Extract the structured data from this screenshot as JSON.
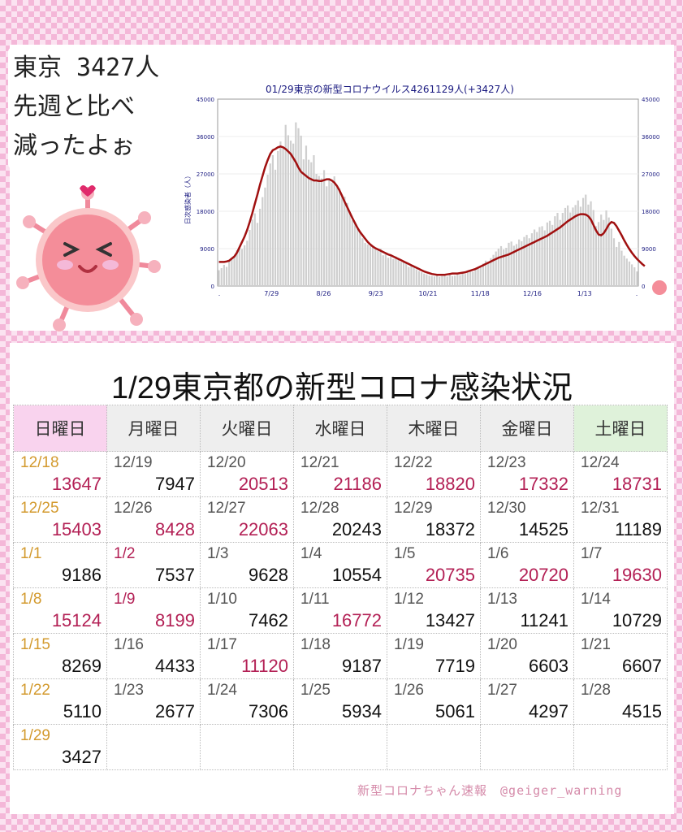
{
  "bubble": {
    "line1": "東京 3427人",
    "line2": "先週と比べ",
    "line3": "減ったよぉ"
  },
  "table": {
    "title": "1/29東京都の新型コロナ感染状況",
    "headers": [
      "日曜日",
      "月曜日",
      "火曜日",
      "水曜日",
      "木曜日",
      "金曜日",
      "土曜日"
    ],
    "rows": [
      [
        {
          "d": "12/18",
          "v": "13647"
        },
        {
          "d": "12/19",
          "v": "7947"
        },
        {
          "d": "12/20",
          "v": "20513"
        },
        {
          "d": "12/21",
          "v": "21186"
        },
        {
          "d": "12/22",
          "v": "18820"
        },
        {
          "d": "12/23",
          "v": "17332"
        },
        {
          "d": "12/24",
          "v": "18731"
        }
      ],
      [
        {
          "d": "12/25",
          "v": "15403"
        },
        {
          "d": "12/26",
          "v": "8428"
        },
        {
          "d": "12/27",
          "v": "22063"
        },
        {
          "d": "12/28",
          "v": "20243"
        },
        {
          "d": "12/29",
          "v": "18372"
        },
        {
          "d": "12/30",
          "v": "14525"
        },
        {
          "d": "12/31",
          "v": "11189"
        }
      ],
      [
        {
          "d": "1/1",
          "v": "9186"
        },
        {
          "d": "1/2",
          "v": "7537"
        },
        {
          "d": "1/3",
          "v": "9628"
        },
        {
          "d": "1/4",
          "v": "10554"
        },
        {
          "d": "1/5",
          "v": "20735"
        },
        {
          "d": "1/6",
          "v": "20720"
        },
        {
          "d": "1/7",
          "v": "19630"
        }
      ],
      [
        {
          "d": "1/8",
          "v": "15124"
        },
        {
          "d": "1/9",
          "v": "8199"
        },
        {
          "d": "1/10",
          "v": "7462"
        },
        {
          "d": "1/11",
          "v": "16772"
        },
        {
          "d": "1/12",
          "v": "13427"
        },
        {
          "d": "1/13",
          "v": "11241"
        },
        {
          "d": "1/14",
          "v": "10729"
        }
      ],
      [
        {
          "d": "1/15",
          "v": "8269"
        },
        {
          "d": "1/16",
          "v": "4433"
        },
        {
          "d": "1/17",
          "v": "11120"
        },
        {
          "d": "1/18",
          "v": "9187"
        },
        {
          "d": "1/19",
          "v": "7719"
        },
        {
          "d": "1/20",
          "v": "6603"
        },
        {
          "d": "1/21",
          "v": "6607"
        }
      ],
      [
        {
          "d": "1/22",
          "v": "5110"
        },
        {
          "d": "1/23",
          "v": "2677"
        },
        {
          "d": "1/24",
          "v": "7306"
        },
        {
          "d": "1/25",
          "v": "5934"
        },
        {
          "d": "1/26",
          "v": "5061"
        },
        {
          "d": "1/27",
          "v": "4297"
        },
        {
          "d": "1/28",
          "v": "4515"
        }
      ],
      [
        {
          "d": "1/29",
          "v": "3427"
        },
        {
          "d": "",
          "v": ""
        },
        {
          "d": "",
          "v": ""
        },
        {
          "d": "",
          "v": ""
        },
        {
          "d": "",
          "v": ""
        },
        {
          "d": "",
          "v": ""
        },
        {
          "d": "",
          "v": ""
        }
      ]
    ],
    "highlight": [
      [
        1,
        0,
        1,
        1,
        1,
        1,
        1
      ],
      [
        1,
        1,
        1,
        0,
        0,
        0,
        0
      ],
      [
        0,
        0,
        0,
        0,
        1,
        1,
        1
      ],
      [
        1,
        1,
        0,
        1,
        0,
        0,
        0
      ],
      [
        0,
        0,
        1,
        0,
        0,
        0,
        0
      ],
      [
        0,
        0,
        0,
        0,
        0,
        0,
        0
      ],
      [
        0,
        0,
        0,
        0,
        0,
        0,
        0
      ]
    ],
    "holiday_dates": [
      "12/18",
      "12/25",
      "1/1",
      "1/8",
      "1/15",
      "1/22",
      "1/29"
    ],
    "holiday_red_dates": [
      "1/2",
      "1/9"
    ]
  },
  "credit": "新型コロナちゃん速報　@geiger_warning",
  "colors": {
    "accent_red": "#b32055",
    "holiday_gold": "#d39a2e",
    "line": "#a01010",
    "bars": "#cfcfcf"
  },
  "chart_data": {
    "type": "bar",
    "title": "01/29東京の新型コロナウイルス4261129人(+3427人)",
    "ylabel": "日次感染者（人）",
    "ylim": [
      0,
      45000
    ],
    "yticks": [
      "0",
      "9000",
      "18000",
      "27000",
      "36000",
      "45000"
    ],
    "xticks": [
      ".",
      "7/29",
      "8/26",
      "9/23",
      "10/21",
      "11/18",
      "12/16",
      "1/13",
      "."
    ],
    "series": [
      {
        "type": "bar",
        "values": [
          3800,
          4300,
          5100,
          4600,
          5900,
          6400,
          7000,
          8600,
          9400,
          8900,
          9800,
          10900,
          13500,
          16000,
          17500,
          15200,
          18600,
          21400,
          23700,
          26800,
          29500,
          31500,
          28000,
          32500,
          34800,
          33100,
          38800,
          36300,
          35000,
          34300,
          39400,
          38000,
          36200,
          30500,
          33800,
          30400,
          29800,
          31500,
          27000,
          26500,
          25900,
          27900,
          24000,
          25800,
          24900,
          26400,
          23800,
          23500,
          22000,
          21500,
          20000,
          17900,
          15800,
          15000,
          13700,
          12800,
          11500,
          10400,
          10000,
          9600,
          9400,
          8800,
          8500,
          9000,
          7400,
          7600,
          6800,
          7200,
          6500,
          7100,
          6500,
          5800,
          6000,
          5600,
          4600,
          5100,
          4400,
          4000,
          3600,
          3300,
          3000,
          2800,
          2500,
          2400,
          2300,
          2500,
          2200,
          2400,
          2600,
          2300,
          2700,
          2400,
          2500,
          2800,
          2600,
          3200,
          2900,
          3400,
          3600,
          3400,
          3900,
          4500,
          4400,
          5400,
          6100,
          5800,
          6700,
          7500,
          8300,
          9000,
          9600,
          8800,
          9200,
          10400,
          10700,
          9700,
          10100,
          11200,
          10800,
          11800,
          12300,
          11500,
          12700,
          13600,
          13000,
          14200,
          14400,
          13400,
          15300,
          15700,
          14700,
          16800,
          17600,
          15900,
          17600,
          18800,
          19400,
          17700,
          18900,
          19500,
          20600,
          19100,
          21200,
          22000,
          19600,
          20400,
          18300,
          14400,
          15400,
          17200,
          15900,
          18200,
          16500,
          13800,
          11500,
          9400,
          10600,
          8500,
          7300,
          6600,
          5900,
          5200,
          4500,
          3500
        ]
      },
      {
        "type": "line",
        "values": [
          5800,
          5800,
          5800,
          5900,
          6100,
          6600,
          7100,
          8000,
          9300,
          10600,
          11900,
          13500,
          15400,
          17500,
          19800,
          22000,
          24400,
          26500,
          28600,
          30300,
          31800,
          32700,
          33000,
          33400,
          33600,
          33400,
          33000,
          32400,
          31800,
          30800,
          29800,
          28500,
          27500,
          27000,
          26500,
          26000,
          25700,
          25400,
          25400,
          25300,
          25300,
          25500,
          25700,
          25700,
          25400,
          24900,
          24100,
          23000,
          21700,
          20300,
          19000,
          17700,
          16400,
          15200,
          14000,
          13000,
          12200,
          11400,
          10600,
          10000,
          9500,
          9100,
          8800,
          8500,
          8200,
          7900,
          7600,
          7400,
          7100,
          6800,
          6500,
          6200,
          5900,
          5600,
          5300,
          5000,
          4700,
          4400,
          4100,
          3800,
          3500,
          3300,
          3100,
          2900,
          2800,
          2700,
          2700,
          2700,
          2700,
          2800,
          2900,
          3000,
          3000,
          3000,
          3100,
          3200,
          3300,
          3500,
          3700,
          3900,
          4100,
          4400,
          4700,
          5000,
          5300,
          5600,
          5900,
          6200,
          6500,
          6800,
          7000,
          7200,
          7400,
          7600,
          7900,
          8200,
          8500,
          8800,
          9100,
          9400,
          9700,
          10000,
          10300,
          10600,
          10900,
          11200,
          11500,
          11800,
          12100,
          12500,
          12900,
          13300,
          13700,
          14100,
          14600,
          15100,
          15600,
          16000,
          16400,
          16800,
          17100,
          17300,
          17300,
          17200,
          16800,
          16000,
          14700,
          13400,
          12400,
          12200,
          12700,
          13700,
          14800,
          15400,
          15200,
          14400,
          13300,
          12200,
          11000,
          9900,
          8900,
          8000,
          7200,
          6500,
          5900,
          5300,
          4800
        ]
      }
    ]
  }
}
